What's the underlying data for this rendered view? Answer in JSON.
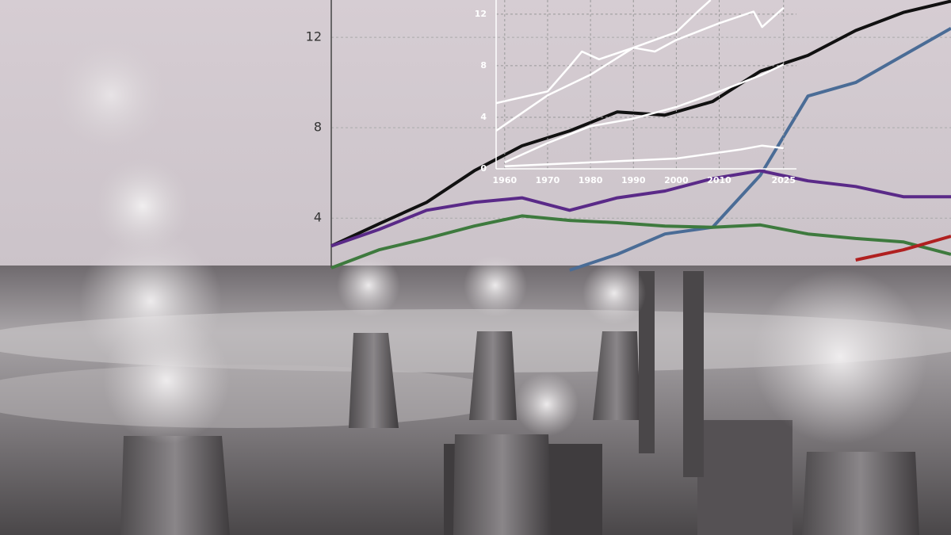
{
  "chart_data": [
    {
      "type": "line",
      "categories": [
        null,
        null,
        null,
        null,
        null,
        null,
        null,
        null,
        null,
        null,
        null,
        null,
        null,
        null
      ],
      "ylim": [
        1.8,
        13.65
      ],
      "yticks": [
        4,
        8,
        12
      ],
      "grid": true,
      "series": [
        {
          "color": "#111111",
          "values": [
            2.77,
            3.75,
            4.7,
            6.1,
            7.2,
            7.86,
            8.7,
            8.56,
            9.16,
            10.5,
            11.2,
            12.3,
            13.1,
            13.6
          ]
        },
        {
          "color": "#4a6c96",
          "values": [
            null,
            null,
            null,
            null,
            null,
            1.7,
            2.4,
            3.3,
            3.6,
            5.9,
            9.4,
            10.0,
            11.2,
            12.4
          ]
        },
        {
          "color": "#5a2a88",
          "values": [
            2.77,
            3.5,
            4.35,
            4.7,
            4.9,
            4.35,
            4.9,
            5.2,
            5.75,
            6.1,
            5.65,
            5.4,
            4.95,
            4.95
          ]
        },
        {
          "color": "#3e7a3e",
          "values": [
            1.8,
            2.6,
            3.1,
            3.65,
            4.1,
            3.9,
            3.8,
            3.65,
            3.6,
            3.7,
            3.3,
            3.1,
            2.95,
            2.4
          ]
        },
        {
          "color": "#b02020",
          "values": [
            null,
            null,
            null,
            null,
            null,
            null,
            null,
            null,
            null,
            null,
            null,
            2.15,
            2.6,
            3.2
          ]
        }
      ]
    },
    {
      "type": "line",
      "xlim": [
        1958,
        2028
      ],
      "xticks": [
        1960,
        1970,
        1980,
        1990,
        2000,
        2010,
        2025
      ],
      "ylim": [
        0,
        13.1
      ],
      "yticks": [
        0,
        4,
        8,
        12
      ],
      "grid": true,
      "series": [
        {
          "color": "#ffffff",
          "x": [
            1958,
            1970,
            1980,
            1990,
            2000,
            2005,
            2008
          ],
          "values": [
            2.95,
            5.7,
            7.3,
            9.4,
            10.6,
            12.2,
            13.1
          ]
        },
        {
          "color": "#ffffff",
          "x": [
            1958,
            1970,
            1975,
            1978,
            1982,
            1990,
            1995,
            2000,
            2010,
            2018,
            2020,
            2025
          ],
          "values": [
            5.1,
            6.0,
            7.9,
            9.1,
            8.5,
            9.4,
            9.1,
            10.0,
            11.3,
            12.2,
            11.0,
            12.5
          ]
        },
        {
          "color": "#ffffff",
          "x": [
            1960,
            1970,
            1980,
            1990,
            2000,
            2010,
            2020,
            2025
          ],
          "values": [
            0.5,
            2.0,
            3.3,
            3.9,
            4.8,
            6.0,
            7.3,
            8.1
          ]
        },
        {
          "color": "#ffffff",
          "x": [
            1960,
            1980,
            2000,
            2015,
            2020,
            2025
          ],
          "values": [
            0.2,
            0.5,
            0.8,
            1.5,
            1.8,
            1.6
          ]
        }
      ]
    }
  ]
}
